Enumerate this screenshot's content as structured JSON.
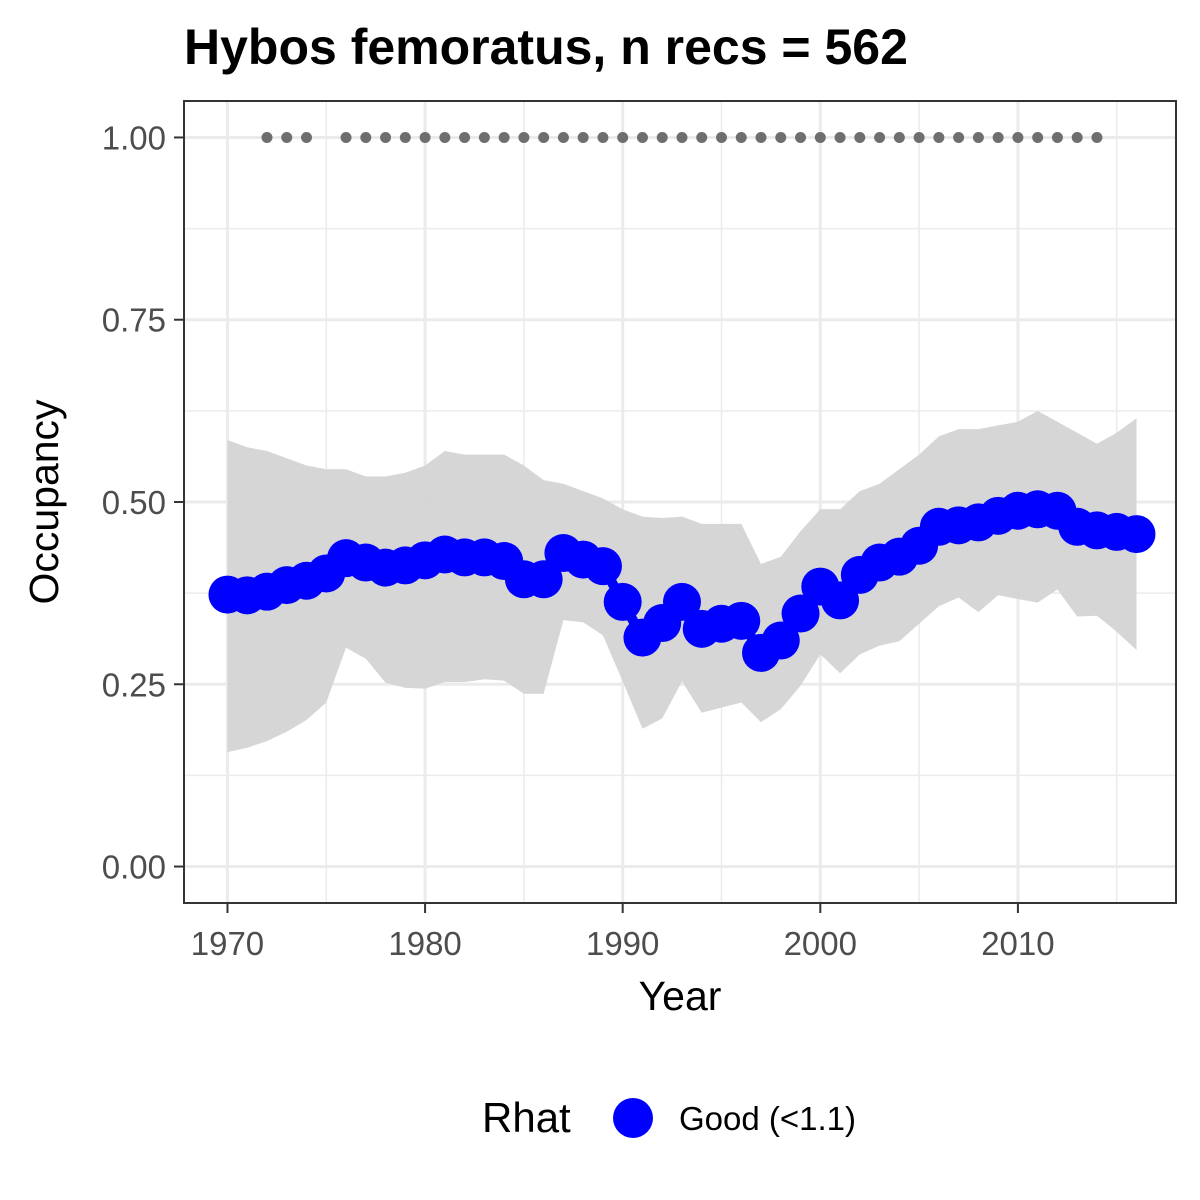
{
  "chart_data": {
    "type": "line",
    "title": "Hybos femoratus, n recs = 562",
    "xlabel": "Year",
    "ylabel": "Occupancy",
    "xlim": [
      1967.8,
      2018.0
    ],
    "ylim": [
      -0.05,
      1.05
    ],
    "xticks": [
      1970,
      1980,
      1990,
      2000,
      2010
    ],
    "xtick_labels": [
      "1970",
      "1980",
      "1990",
      "2000",
      "2010"
    ],
    "yticks": [
      0,
      0.25,
      0.5,
      0.75,
      1.0
    ],
    "ytick_labels": [
      "0.00",
      "0.25",
      "0.50",
      "0.75",
      "1.00"
    ],
    "grid": true,
    "legend_position": "bottom",
    "legend": {
      "title": "Rhat",
      "entries": [
        {
          "label": "Good (<1.1)",
          "color": "#0000ff"
        }
      ]
    },
    "x": [
      1970,
      1971,
      1972,
      1973,
      1974,
      1975,
      1976,
      1977,
      1978,
      1979,
      1980,
      1981,
      1982,
      1983,
      1984,
      1985,
      1986,
      1987,
      1988,
      1989,
      1990,
      1991,
      1992,
      1993,
      1994,
      1995,
      1996,
      1997,
      1998,
      1999,
      2000,
      2001,
      2002,
      2003,
      2004,
      2005,
      2006,
      2007,
      2008,
      2009,
      2010,
      2011,
      2012,
      2013,
      2014,
      2015,
      2016
    ],
    "series": [
      {
        "name": "Good (<1.1)",
        "color": "#0000ff",
        "values": [
          0.373,
          0.372,
          0.377,
          0.386,
          0.392,
          0.402,
          0.423,
          0.417,
          0.41,
          0.413,
          0.42,
          0.428,
          0.424,
          0.424,
          0.419,
          0.394,
          0.394,
          0.43,
          0.421,
          0.412,
          0.363,
          0.314,
          0.334,
          0.363,
          0.326,
          0.333,
          0.337,
          0.293,
          0.31,
          0.347,
          0.384,
          0.365,
          0.4,
          0.417,
          0.425,
          0.44,
          0.466,
          0.468,
          0.472,
          0.481,
          0.488,
          0.49,
          0.488,
          0.466,
          0.461,
          0.459,
          0.456
        ]
      }
    ],
    "credible_interval": {
      "color": "#d4d4d4",
      "lower": [
        0.157,
        0.163,
        0.172,
        0.185,
        0.201,
        0.225,
        0.3,
        0.285,
        0.252,
        0.245,
        0.244,
        0.253,
        0.253,
        0.257,
        0.255,
        0.237,
        0.237,
        0.338,
        0.335,
        0.317,
        0.254,
        0.189,
        0.203,
        0.254,
        0.211,
        0.218,
        0.225,
        0.198,
        0.216,
        0.248,
        0.291,
        0.265,
        0.291,
        0.303,
        0.309,
        0.333,
        0.357,
        0.369,
        0.349,
        0.372,
        0.367,
        0.362,
        0.38,
        0.343,
        0.344,
        0.322,
        0.297
      ],
      "upper": [
        0.585,
        0.575,
        0.57,
        0.56,
        0.55,
        0.545,
        0.545,
        0.535,
        0.535,
        0.54,
        0.55,
        0.57,
        0.565,
        0.565,
        0.565,
        0.55,
        0.53,
        0.525,
        0.515,
        0.505,
        0.49,
        0.48,
        0.478,
        0.48,
        0.47,
        0.47,
        0.47,
        0.415,
        0.425,
        0.46,
        0.49,
        0.49,
        0.515,
        0.525,
        0.545,
        0.565,
        0.59,
        0.6,
        0.6,
        0.605,
        0.61,
        0.625,
        0.61,
        0.595,
        0.58,
        0.595,
        0.615
      ]
    },
    "records": {
      "color": "#6e6e6e",
      "y": 1.0,
      "x": [
        1972,
        1973,
        1974,
        1976,
        1977,
        1978,
        1979,
        1980,
        1981,
        1982,
        1983,
        1984,
        1985,
        1986,
        1987,
        1988,
        1989,
        1990,
        1991,
        1992,
        1993,
        1994,
        1995,
        1996,
        1997,
        1998,
        1999,
        2000,
        2001,
        2002,
        2003,
        2004,
        2005,
        2006,
        2007,
        2008,
        2009,
        2010,
        2011,
        2012,
        2013,
        2014
      ]
    }
  }
}
